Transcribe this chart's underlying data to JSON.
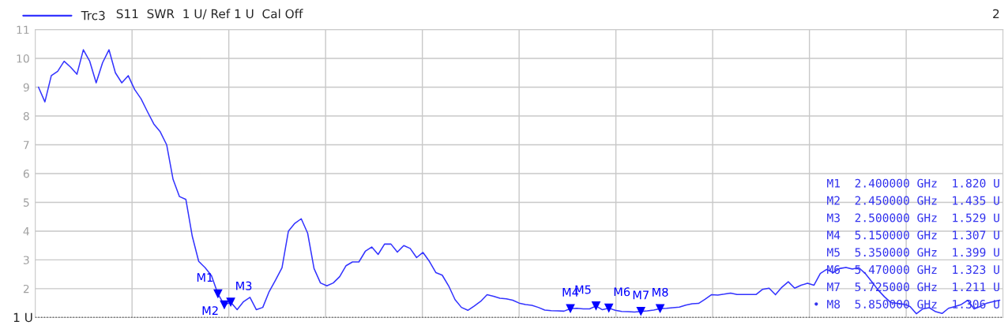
{
  "chart_data": {
    "type": "line",
    "subtitle": "S11  SWR  1 U/ Ref 1 U  Cal Off",
    "categories": [
      null,
      null,
      null,
      null,
      null,
      null,
      null,
      null,
      null,
      null,
      null,
      null,
      null,
      null,
      null,
      null,
      null,
      null,
      null,
      null,
      null,
      null,
      null,
      null,
      null,
      null,
      null,
      null,
      null,
      null,
      null,
      null,
      null,
      null,
      null,
      null,
      null,
      null,
      null,
      null,
      null,
      null,
      null,
      null,
      null,
      null,
      null,
      null,
      null,
      null,
      null,
      null,
      null,
      null,
      null,
      null,
      null,
      null,
      null,
      null,
      null,
      null,
      null,
      null,
      null,
      null,
      null,
      null,
      null,
      null,
      null,
      null,
      null,
      null,
      null,
      null,
      null,
      null,
      null,
      null,
      null,
      null,
      null,
      null,
      null,
      null,
      null,
      null,
      null,
      null,
      null,
      null,
      null,
      null,
      null,
      null,
      null,
      null,
      null,
      null,
      null,
      null,
      null,
      null,
      null,
      null,
      null,
      null,
      null,
      null,
      null,
      null,
      null,
      null,
      null,
      null,
      null,
      null,
      null,
      null,
      null,
      null,
      null,
      null,
      null,
      null,
      null,
      null,
      null,
      null,
      null,
      null,
      null,
      null,
      null,
      null,
      null,
      null,
      null,
      null,
      null,
      null,
      null,
      null,
      null,
      null,
      null,
      null,
      null,
      null,
      null
    ],
    "ylim": [
      1,
      11
    ],
    "yticks": [
      2,
      3,
      4,
      5,
      6,
      7,
      8,
      9,
      10,
      11
    ],
    "grid": true,
    "legend": "top left",
    "ref_lines": [
      {
        "axis": "y",
        "value": 1,
        "label": "1 U",
        "color": "#000000",
        "line_style": "dotted"
      }
    ],
    "annotations": [
      "2",
      "M1  2.400000 GHz  1.820 U",
      "M2  2.450000 GHz  1.435 U",
      "M3  2.500000 GHz  1.529 U",
      "M4  5.150000 GHz  1.307 U",
      "M5  5.350000 GHz  1.399 U",
      "M6  5.470000 GHz  1.323 U",
      "M7  5.725000 GHz  1.211 U",
      "• M8  5.850000 GHz  1.306 U"
    ],
    "series": [
      {
        "name": "Trc3",
        "color": "#3333ff",
        "values": [
          9.0,
          8.49,
          9.4,
          9.55,
          9.9,
          9.7,
          9.45,
          10.3,
          9.9,
          9.15,
          9.85,
          10.3,
          9.5,
          9.15,
          9.4,
          8.92,
          8.6,
          8.15,
          7.72,
          7.45,
          7.0,
          5.8,
          5.2,
          5.1,
          3.82,
          2.95,
          2.73,
          2.45,
          1.82,
          1.435,
          1.529,
          1.27,
          1.55,
          1.7,
          1.27,
          1.35,
          1.9,
          2.3,
          2.73,
          4.0,
          4.27,
          4.43,
          3.93,
          2.7,
          2.2,
          2.1,
          2.2,
          2.42,
          2.8,
          2.93,
          2.93,
          3.3,
          3.45,
          3.19,
          3.55,
          3.55,
          3.27,
          3.5,
          3.4,
          3.08,
          3.26,
          2.95,
          2.56,
          2.47,
          2.1,
          1.62,
          1.35,
          1.25,
          1.4,
          1.56,
          1.79,
          1.74,
          1.67,
          1.65,
          1.6,
          1.5,
          1.45,
          1.42,
          1.35,
          1.26,
          1.24,
          1.23,
          1.22,
          1.307,
          1.32,
          1.3,
          1.3,
          1.399,
          1.27,
          1.323,
          1.25,
          1.21,
          1.2,
          1.19,
          1.211,
          1.23,
          1.26,
          1.306,
          1.32,
          1.34,
          1.36,
          1.43,
          1.48,
          1.49,
          1.63,
          1.79,
          1.78,
          1.81,
          1.85,
          1.8,
          1.8,
          1.8,
          1.8,
          1.98,
          2.02,
          1.79,
          2.05,
          2.24,
          2.02,
          2.12,
          2.19,
          2.12,
          2.53,
          2.67,
          2.56,
          2.7,
          2.74,
          2.68,
          2.73,
          2.53,
          2.25,
          1.96,
          1.72,
          1.52,
          1.49,
          1.46,
          1.38,
          1.13,
          1.3,
          1.34,
          1.2,
          1.14,
          1.32,
          1.38,
          1.45,
          1.6,
          1.3,
          1.39,
          1.5,
          1.55,
          1.6
        ]
      },
      {
        "type": "scatter",
        "color": "#0000ff",
        "marker": "triangle",
        "values": [
          null,
          null,
          null,
          null,
          null,
          null,
          null,
          null,
          null,
          null,
          null,
          null,
          null,
          null,
          null,
          null,
          null,
          null,
          null,
          null,
          null,
          null,
          null,
          null,
          null,
          null,
          null,
          null,
          1.82,
          1.435,
          1.529,
          null,
          null,
          null,
          null,
          null,
          null,
          null,
          null,
          null,
          null,
          null,
          null,
          null,
          null,
          null,
          null,
          null,
          null,
          null,
          null,
          null,
          null,
          null,
          null,
          null,
          null,
          null,
          null,
          null,
          null,
          null,
          null,
          null,
          null,
          null,
          null,
          null,
          null,
          null,
          null,
          null,
          null,
          null,
          null,
          null,
          null,
          null,
          null,
          null,
          null,
          null,
          null,
          1.307,
          null,
          null,
          null,
          1.399,
          null,
          1.323,
          null,
          null,
          null,
          null,
          1.211,
          null,
          null,
          1.306,
          null,
          null,
          null,
          null,
          null,
          null,
          null,
          null,
          null,
          null,
          null,
          null,
          null,
          null,
          null,
          null,
          null,
          null,
          null,
          null,
          null,
          null,
          null,
          null,
          null,
          null,
          null,
          null,
          null,
          null,
          null,
          null,
          null,
          null,
          null,
          null,
          null,
          null,
          null,
          null,
          null,
          null,
          null,
          null,
          null,
          null,
          null,
          null,
          null,
          null,
          null,
          null,
          null
        ],
        "value_labels": [
          null,
          null,
          null,
          null,
          null,
          null,
          null,
          null,
          null,
          null,
          null,
          null,
          null,
          null,
          null,
          null,
          null,
          null,
          null,
          null,
          null,
          null,
          null,
          null,
          null,
          null,
          null,
          null,
          "M1",
          "M2",
          "M3",
          null,
          null,
          null,
          null,
          null,
          null,
          null,
          null,
          null,
          null,
          null,
          null,
          null,
          null,
          null,
          null,
          null,
          null,
          null,
          null,
          null,
          null,
          null,
          null,
          null,
          null,
          null,
          null,
          null,
          null,
          null,
          null,
          null,
          null,
          null,
          null,
          null,
          null,
          null,
          null,
          null,
          null,
          null,
          null,
          null,
          null,
          null,
          null,
          null,
          null,
          null,
          null,
          "M4",
          null,
          null,
          null,
          "M5",
          null,
          "M6",
          null,
          null,
          null,
          null,
          "M7",
          null,
          null,
          "M8",
          null,
          null,
          null,
          null,
          null,
          null,
          null,
          null,
          null,
          null,
          null,
          null,
          null,
          null,
          null,
          null,
          null,
          null,
          null,
          null,
          null,
          null,
          null,
          null,
          null,
          null,
          null,
          null,
          null,
          null,
          null,
          null,
          null,
          null,
          null,
          null,
          null,
          null,
          null,
          null,
          null,
          null,
          null,
          null,
          null,
          null,
          null,
          null,
          null,
          null,
          null,
          null,
          null
        ]
      }
    ]
  }
}
